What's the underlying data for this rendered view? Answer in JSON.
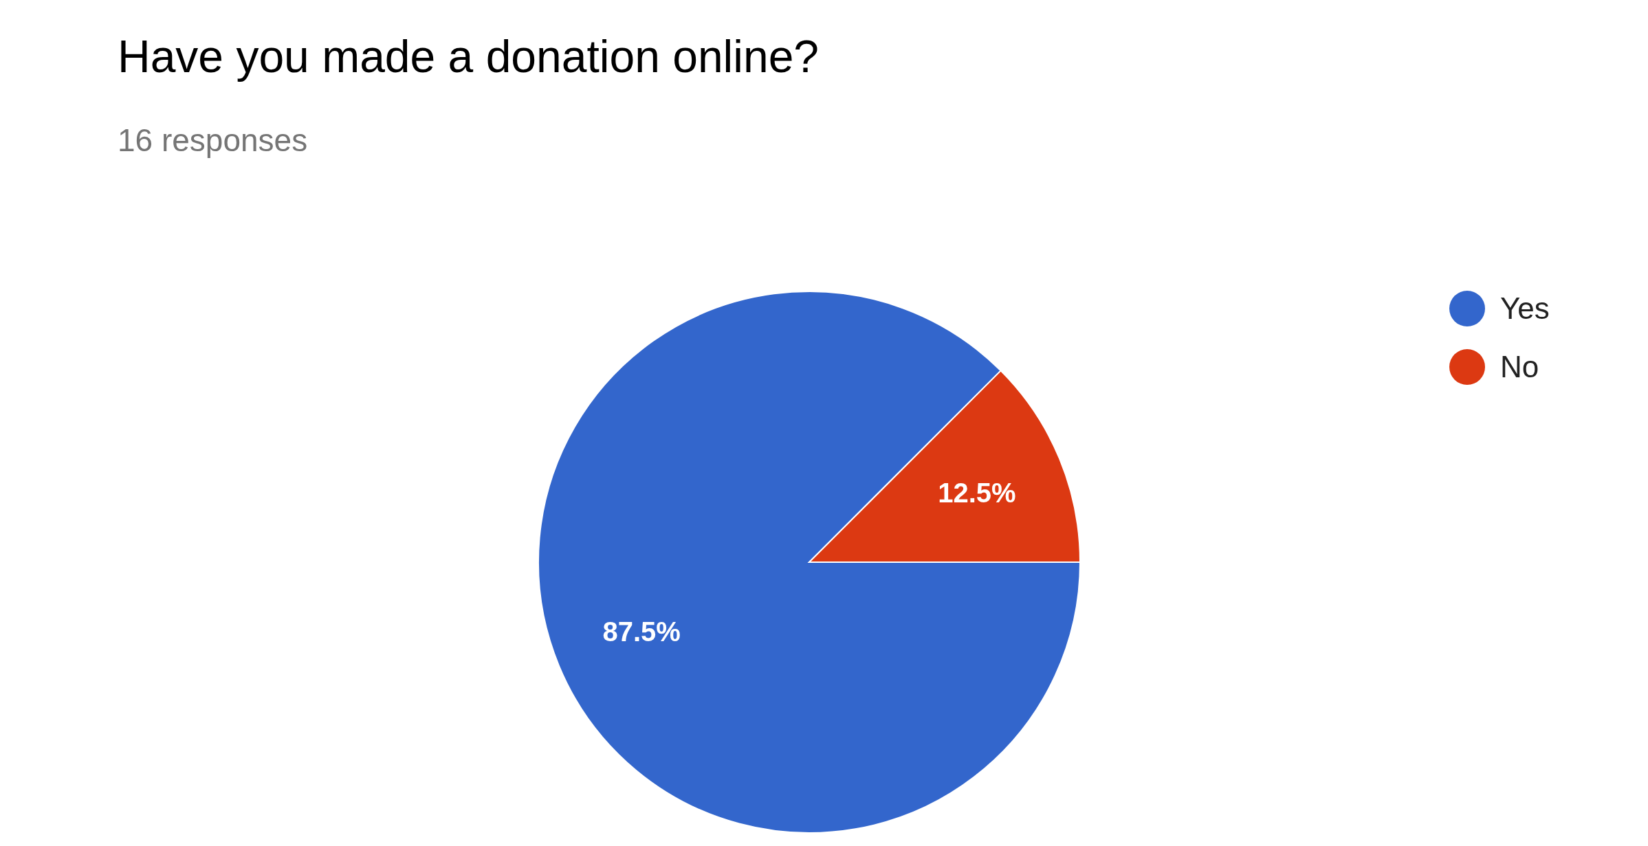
{
  "chart_data": {
    "type": "pie",
    "title": "Have you made a donation online?",
    "subtitle": "16 responses",
    "categories": [
      "Yes",
      "No"
    ],
    "values": [
      87.5,
      12.5
    ],
    "colors": [
      "#3366cc",
      "#dc3912"
    ],
    "value_labels": [
      "87.5%",
      "12.5%"
    ],
    "legend": "top right"
  }
}
